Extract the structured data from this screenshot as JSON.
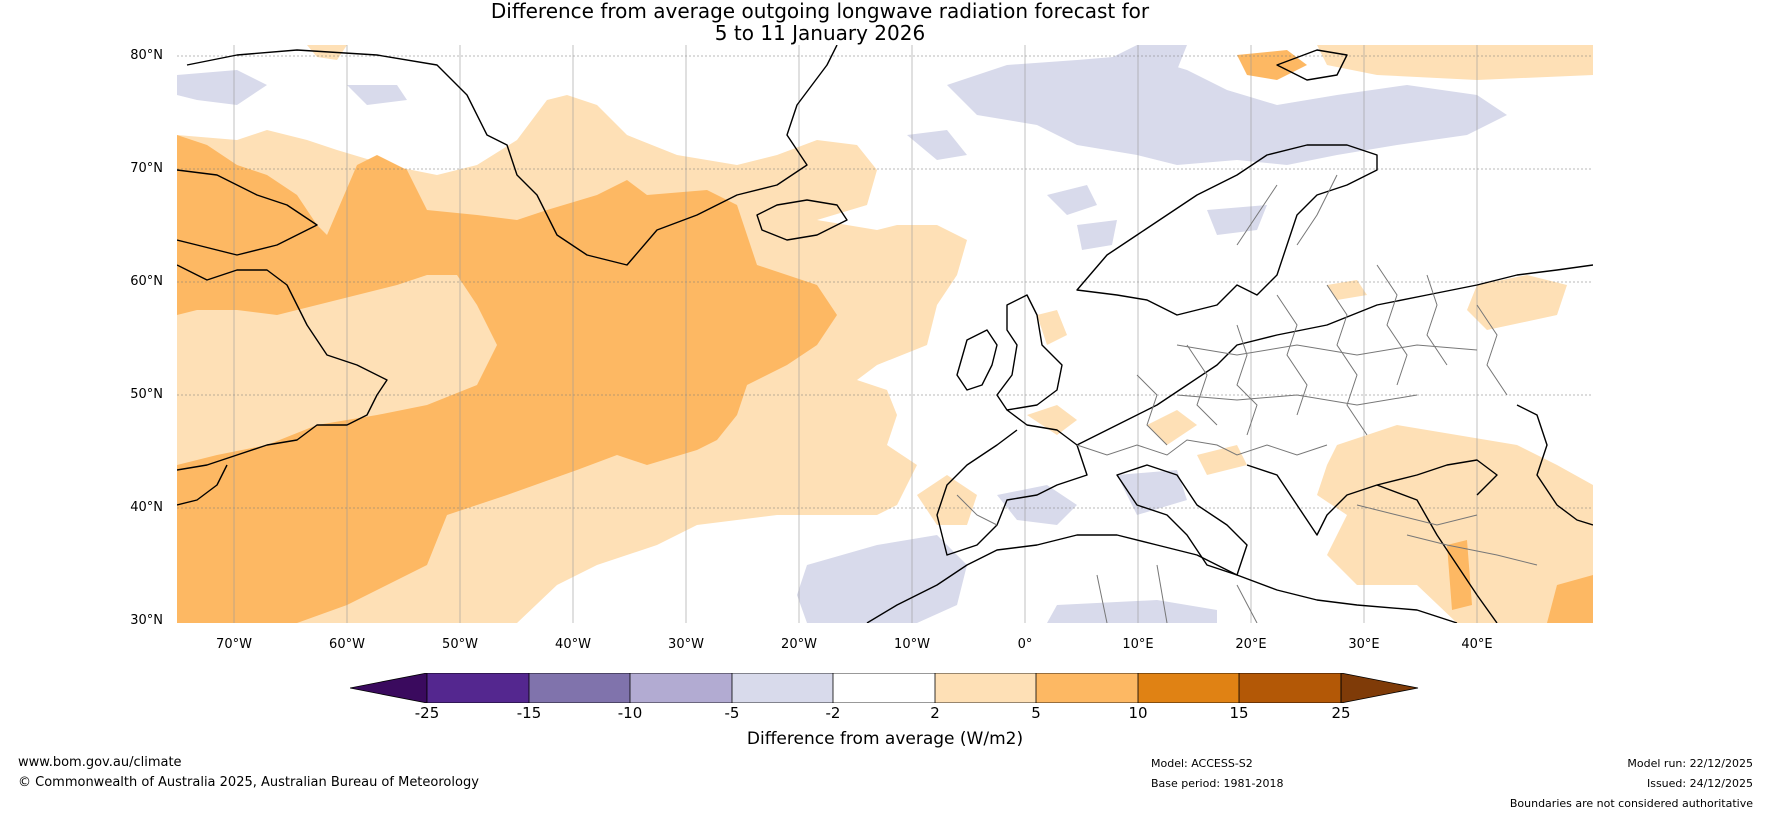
{
  "title_line1": "Difference from average outgoing longwave radiation forecast for",
  "title_line2": "5 to 11 January 2026",
  "latitude_labels": [
    "80°N",
    "70°N",
    "60°N",
    "50°N",
    "40°N",
    "30°N"
  ],
  "longitude_labels": [
    "70°W",
    "60°W",
    "50°W",
    "40°W",
    "30°W",
    "20°W",
    "10°W",
    "0°",
    "10°E",
    "20°E",
    "30°E",
    "40°E"
  ],
  "colorbar": {
    "title": "Difference from average (W/m2)",
    "ticks": [
      "-25",
      "-15",
      "-10",
      "-5",
      "-2",
      "2",
      "5",
      "10",
      "15",
      "25"
    ],
    "colors": [
      "#3a0a5e",
      "#54278f",
      "#8073ac",
      "#b2abd2",
      "#d8daeb",
      "#ffffff",
      "#fee0b6",
      "#fdb863",
      "#e08214",
      "#b35806",
      "#7f3b08"
    ]
  },
  "footer": {
    "website": "www.bom.gov.au/climate",
    "copyright": "© Commonwealth of Australia 2025, Australian Bureau of Meteorology",
    "model": "Model: ACCESS-S2",
    "base_period": "Base period: 1981-2018",
    "model_run": "Model run: 22/12/2025",
    "issued": "Issued: 24/12/2025",
    "boundaries": "Boundaries are not considered authoritative"
  }
}
